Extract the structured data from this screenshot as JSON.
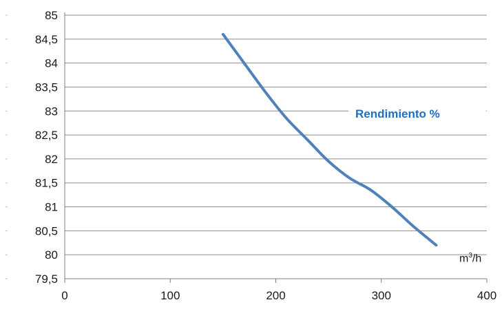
{
  "chart_data": {
    "type": "line",
    "series": [
      {
        "color": "#4f81bd",
        "x": [
          150,
          170,
          190,
          210,
          230,
          250,
          270,
          290,
          310,
          330,
          352
        ],
        "y": [
          84.6,
          84.0,
          83.4,
          82.85,
          82.4,
          81.95,
          81.6,
          81.35,
          81.0,
          80.6,
          80.2
        ]
      }
    ],
    "xlim": [
      0,
      400
    ],
    "ylim": [
      79.5,
      85
    ],
    "xticks": [
      "0",
      "100",
      "200",
      "300",
      "400"
    ],
    "yticks": [
      "85",
      "84,5",
      "84",
      "83,5",
      "83",
      "82,5",
      "82",
      "81,5",
      "81",
      "80,5",
      "80",
      "79,5"
    ],
    "annotation": "Rendimiento %",
    "annotation_color": "#1f6fbf",
    "unit_base": "m",
    "unit_exp": "3",
    "unit_tail": "/h",
    "grid": true,
    "gridline_color": "#8c8c8c"
  }
}
